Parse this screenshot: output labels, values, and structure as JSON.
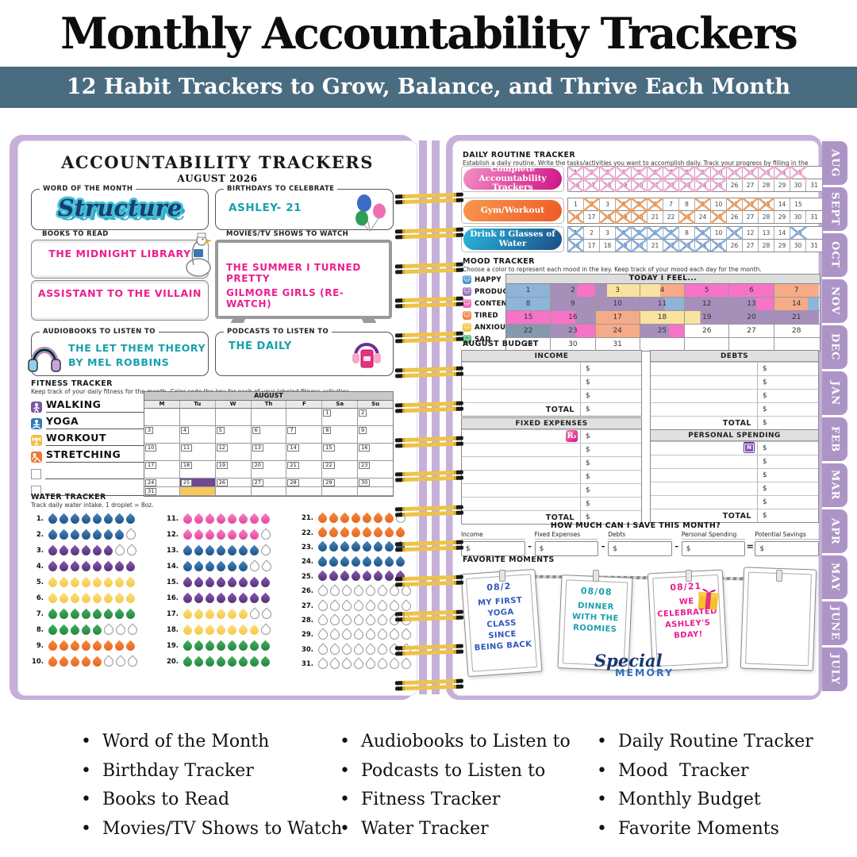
{
  "header": {
    "title": "Monthly Accountability Trackers",
    "banner": "12 Habit Trackers to Grow, Balance, and Thrive Each Month",
    "banner_color": "#4a6c80"
  },
  "left_page": {
    "title": "ACCOUNTABILITY TRACKERS",
    "subtitle": "AUGUST 2026",
    "word_of_month": {
      "label": "WORD OF THE MONTH",
      "value": "Structure"
    },
    "birthdays": {
      "label": "BIRTHDAYS TO CELEBRATE",
      "value": "ASHLEY- 21"
    },
    "books": {
      "label": "BOOKS TO READ",
      "entries": [
        "THE MIDNIGHT LIBRARY",
        "ASSISTANT TO THE VILLAIN"
      ]
    },
    "movies": {
      "label": "MOVIES/TV SHOWS TO WATCH",
      "entries": [
        "THE SUMMER I TURNED PRETTY",
        "GILMORE GIRLS (RE-WATCH)"
      ]
    },
    "audiobooks": {
      "label": "AUDIOBOOKS TO LISTEN TO",
      "entries": [
        "THE LET THEM THEORY",
        "BY MEL ROBBINS"
      ]
    },
    "podcasts": {
      "label": "PODCASTS TO LISTEN TO",
      "entries": [
        "THE DAILY"
      ]
    },
    "fitness": {
      "title": "FITNESS TRACKER",
      "subtitle": "Keep track of your daily fitness for the month. Color code the key for each of your labeled fitness activities.",
      "key": [
        {
          "label": "WALKING",
          "color": "#7a58a5",
          "icon": "walking-icon"
        },
        {
          "label": "YOGA",
          "color": "#2f7bb8",
          "icon": "yoga-icon"
        },
        {
          "label": "WORKOUT",
          "color": "#f6bc3f",
          "icon": "workout-icon"
        },
        {
          "label": "STRETCHING",
          "color": "#f0782f",
          "icon": "stretching-icon"
        },
        {
          "label": "",
          "color": ""
        },
        {
          "label": "",
          "color": ""
        }
      ],
      "calendar": {
        "month": "AUGUST",
        "day_headers": [
          "M",
          "Tu",
          "W",
          "Th",
          "F",
          "Sa",
          "Su"
        ],
        "colors": {
          "orange": "#f0793a",
          "purple": "#6e4b8e",
          "yellow": "#f9c85a",
          "blue": "#2e5f8d"
        },
        "weeks": [
          {
            "h": "tall",
            "cells": [
              {},
              {},
              {},
              {},
              {},
              {
                "day": 1
              },
              {
                "day": 2,
                "top": "blue",
                "bottom": "blue"
              }
            ]
          },
          {
            "h": "tall",
            "cells": [
              {
                "day": 3,
                "top": "orange",
                "bottom": "purple"
              },
              {
                "day": 4,
                "top": "purple",
                "bottom": "yellow"
              },
              {
                "day": 5,
                "top": "blue",
                "bottom": "blue"
              },
              {
                "day": 6,
                "top": "purple",
                "bottom": "yellow"
              },
              {
                "day": 7
              },
              {
                "day": 8
              },
              {
                "day": 9,
                "top": "blue",
                "bottom": "blue"
              }
            ]
          },
          {
            "h": "tall",
            "cells": [
              {
                "day": 10,
                "top": "orange",
                "bottom": "purple"
              },
              {
                "day": 11,
                "top": "purple",
                "bottom": "yellow"
              },
              {
                "day": 12,
                "top": "blue",
                "bottom": "blue"
              },
              {
                "day": 13,
                "top": "purple",
                "bottom": "yellow"
              },
              {
                "day": 14
              },
              {
                "day": 15
              },
              {
                "day": 16,
                "top": "blue",
                "bottom": "blue"
              }
            ]
          },
          {
            "h": "tall",
            "cells": [
              {
                "day": 17,
                "top": "orange",
                "bottom": "purple"
              },
              {
                "day": 18,
                "top": "purple",
                "bottom": "yellow"
              },
              {
                "day": 19,
                "top": "blue",
                "bottom": "blue"
              },
              {
                "day": 20,
                "top": "purple",
                "bottom": "yellow"
              },
              {
                "day": 21
              },
              {
                "day": 22
              },
              {
                "day": 23,
                "top": "blue",
                "bottom": "blue"
              }
            ]
          },
          {
            "h": "short",
            "cells": [
              {
                "day": 24
              },
              {
                "day": 25,
                "top": "purple"
              },
              {
                "day": 26
              },
              {
                "day": 27
              },
              {
                "day": 28
              },
              {
                "day": 29
              },
              {
                "day": 30
              }
            ]
          },
          {
            "h": "short",
            "cells": [
              {
                "day": 31
              },
              {
                "top": "yellow"
              },
              {},
              {},
              {},
              {},
              {}
            ]
          }
        ]
      }
    },
    "water": {
      "title": "WATER TRACKER",
      "subtitle": "Track daily water intake. 1 droplet = 8oz.",
      "slots_per_day": 8,
      "colors": {
        "blue": [
          "#4887c0",
          "#16497a"
        ],
        "purple": [
          "#8a5bb0",
          "#4b2a70"
        ],
        "yellow": [
          "#fde083",
          "#f3c53d"
        ],
        "green": [
          "#46b05c",
          "#1d7e3c"
        ],
        "orange": [
          "#f68c3c",
          "#e55f1f"
        ],
        "pink": [
          "#f584c6",
          "#e23a98"
        ]
      },
      "columns": [
        [
          {
            "d": 1,
            "c": "blue",
            "f": 8
          },
          {
            "d": 2,
            "c": "blue",
            "f": 7
          },
          {
            "d": 3,
            "c": "purple",
            "f": 6
          },
          {
            "d": 4,
            "c": "purple",
            "f": 8
          },
          {
            "d": 5,
            "c": "yellow",
            "f": 8
          },
          {
            "d": 6,
            "c": "yellow",
            "f": 8
          },
          {
            "d": 7,
            "c": "green",
            "f": 8
          },
          {
            "d": 8,
            "c": "green",
            "f": 5
          },
          {
            "d": 9,
            "c": "orange",
            "f": 8
          },
          {
            "d": 10,
            "c": "orange",
            "f": 5
          }
        ],
        [
          {
            "d": 11,
            "c": "pink",
            "f": 8
          },
          {
            "d": 12,
            "c": "pink",
            "f": 7
          },
          {
            "d": 13,
            "c": "blue",
            "f": 7
          },
          {
            "d": 14,
            "c": "blue",
            "f": 6
          },
          {
            "d": 15,
            "c": "purple",
            "f": 8
          },
          {
            "d": 16,
            "c": "purple",
            "f": 8
          },
          {
            "d": 17,
            "c": "yellow",
            "f": 6
          },
          {
            "d": 18,
            "c": "yellow",
            "f": 7
          },
          {
            "d": 19,
            "c": "green",
            "f": 8
          },
          {
            "d": 20,
            "c": "green",
            "f": 8
          }
        ],
        [
          {
            "d": 21,
            "c": "orange",
            "f": 7
          },
          {
            "d": 22,
            "c": "orange",
            "f": 8
          },
          {
            "d": 23,
            "c": "blue",
            "f": 8
          },
          {
            "d": 24,
            "c": "blue",
            "f": 8
          },
          {
            "d": 25,
            "c": "purple",
            "f": 8
          },
          {
            "d": 26,
            "c": "",
            "f": 0
          },
          {
            "d": 27,
            "c": "",
            "f": 0
          },
          {
            "d": 28,
            "c": "",
            "f": 0
          },
          {
            "d": 29,
            "c": "",
            "f": 0
          },
          {
            "d": 30,
            "c": "",
            "f": 0
          },
          {
            "d": 31,
            "c": "",
            "f": 0
          }
        ]
      ]
    }
  },
  "right_page": {
    "routine": {
      "title": "DAILY ROUTINE TRACKER",
      "subtitle": "Establish a daily routine. Write the tasks/activities you want to accomplish daily. Track your progress by filling in the days you complete them.",
      "tasks": [
        {
          "label": "Complete Accountability Trackers",
          "pill": [
            "#f291c5",
            "#cf1286"
          ],
          "x_color": "#f2a0d2",
          "crossed": [
            1,
            2,
            3,
            4,
            5,
            6,
            7,
            8,
            9,
            10,
            11,
            12,
            13,
            14,
            15,
            16,
            17,
            18,
            19,
            20,
            21,
            22,
            23,
            24,
            25
          ]
        },
        {
          "label": "Gym/Workout",
          "pill": [
            "#f7974f",
            "#ee5a24"
          ],
          "x_color": "#f0954c",
          "crossed": [
            2,
            4,
            5,
            6,
            9,
            11,
            12,
            13,
            16,
            18,
            19,
            20,
            23,
            25
          ]
        },
        {
          "label": "Drink 8 Glasses of Water",
          "pill": [
            "#2ab5dc",
            "#1b4e86"
          ],
          "x_color": "#76a3da",
          "crossed": [
            1,
            4,
            5,
            6,
            7,
            9,
            11,
            15,
            16,
            19,
            20,
            22,
            23,
            24,
            25
          ]
        }
      ]
    },
    "mood": {
      "title": "MOOD TRACKER",
      "subtitle": "Choose a color to represent each mood in the key. Keep track of your mood each day for the month.",
      "feel_header": "TODAY I FEEL...",
      "key": [
        {
          "label": "HAPPY",
          "color": "#4f97d6"
        },
        {
          "label": "PRODUCTIVE",
          "color": "#9a70c0"
        },
        {
          "label": "CONTENT",
          "color": "#f268b4"
        },
        {
          "label": "TIRED",
          "color": "#f08548"
        },
        {
          "label": "ANXIOUS",
          "color": "#f3c33f"
        },
        {
          "label": "SAD",
          "color": "#3fae62"
        }
      ],
      "cell_colors": {
        "B": "#8fb4d9",
        "P": "#a78fbb",
        "K": "#f773c8",
        "Y": "#fae3a0",
        "O": "#f6ab88",
        "S": "#8598ad",
        "W": "#ffffff"
      },
      "cells": [
        {
          "d": 1,
          "s": [
            [
              "B",
              100
            ]
          ]
        },
        {
          "d": 2,
          "s": [
            [
              "P",
              60
            ],
            [
              "K",
              40
            ]
          ]
        },
        {
          "d": 3,
          "s": [
            [
              "P",
              25
            ],
            [
              "Y",
              75
            ]
          ]
        },
        {
          "d": 4,
          "s": [
            [
              "Y",
              45
            ],
            [
              "O",
              55
            ]
          ]
        },
        {
          "d": 5,
          "s": [
            [
              "K",
              100
            ]
          ]
        },
        {
          "d": 6,
          "s": [
            [
              "K",
              100
            ]
          ]
        },
        {
          "d": 7,
          "s": [
            [
              "O",
              100
            ]
          ]
        },
        {
          "d": 8,
          "s": [
            [
              "B",
              100
            ]
          ]
        },
        {
          "d": 9,
          "s": [
            [
              "P",
              100
            ]
          ]
        },
        {
          "d": 10,
          "s": [
            [
              "P",
              100
            ]
          ]
        },
        {
          "d": 11,
          "s": [
            [
              "P",
              55
            ],
            [
              "B",
              45
            ]
          ]
        },
        {
          "d": 12,
          "s": [
            [
              "P",
              100
            ]
          ]
        },
        {
          "d": 13,
          "s": [
            [
              "P",
              60
            ],
            [
              "K",
              40
            ]
          ]
        },
        {
          "d": 14,
          "s": [
            [
              "O",
              75
            ],
            [
              "B",
              25
            ]
          ]
        },
        {
          "d": 15,
          "s": [
            [
              "K",
              100
            ]
          ]
        },
        {
          "d": 16,
          "s": [
            [
              "K",
              55
            ],
            [
              "P",
              45
            ]
          ]
        },
        {
          "d": 17,
          "s": [
            [
              "O",
              100
            ]
          ]
        },
        {
          "d": 18,
          "s": [
            [
              "Y",
              100
            ]
          ]
        },
        {
          "d": 19,
          "s": [
            [
              "Y",
              35
            ],
            [
              "P",
              65
            ]
          ]
        },
        {
          "d": 20,
          "s": [
            [
              "P",
              100
            ]
          ]
        },
        {
          "d": 21,
          "s": [
            [
              "P",
              100
            ]
          ]
        },
        {
          "d": 22,
          "s": [
            [
              "S",
              100
            ]
          ]
        },
        {
          "d": 23,
          "s": [
            [
              "P",
              55
            ],
            [
              "K",
              45
            ]
          ]
        },
        {
          "d": 24,
          "s": [
            [
              "O",
              100
            ]
          ]
        },
        {
          "d": 25,
          "s": [
            [
              "P",
              65
            ],
            [
              "K",
              35
            ]
          ]
        },
        {
          "d": 26,
          "s": [
            [
              "W",
              100
            ]
          ]
        },
        {
          "d": 27,
          "s": [
            [
              "W",
              100
            ]
          ]
        },
        {
          "d": 28,
          "s": [
            [
              "W",
              100
            ]
          ]
        },
        {
          "d": 29,
          "s": [
            [
              "W",
              100
            ]
          ]
        },
        {
          "d": 30,
          "s": [
            [
              "W",
              100
            ]
          ]
        },
        {
          "d": 31,
          "s": [
            [
              "W",
              100
            ]
          ]
        }
      ]
    },
    "budget": {
      "title": "AUGUST BUDGET",
      "dollar": "$",
      "total_label": "TOTAL",
      "tables": {
        "income": {
          "header": "INCOME",
          "rows": 3,
          "icon": ""
        },
        "debts": {
          "header": "DEBTS",
          "rows": 4,
          "icon": ""
        },
        "fixed": {
          "header": "FIXED EXPENSES",
          "rows": 6,
          "icon": "rx"
        },
        "personal": {
          "header": "PERSONAL SPENDING",
          "rows": 5,
          "icon": "monitor"
        }
      }
    },
    "save": {
      "title": "HOW MUCH CAN I SAVE THIS MONTH?",
      "fields": [
        "Income",
        "Fixed Expenses",
        "Debts",
        "Personal Spending",
        "Potential Savings"
      ],
      "operators": [
        "-",
        "-",
        "-",
        "="
      ],
      "dollar": "$"
    },
    "moments": {
      "title": "FAVORITE MOMENTS",
      "polaroids": [
        {
          "date": "08/2",
          "text": "MY FIRST YOGA CLASS SINCE BEING BACK",
          "ink": "#2e57bd",
          "tilt": -4,
          "gift": false
        },
        {
          "date": "08/08",
          "text": "DINNER WITH THE ROOMIES",
          "ink": "#18a0ad",
          "tilt": 2.5,
          "gift": false
        },
        {
          "date": "08/21",
          "text": "WE CELEBRATED ASHLEY'S BDAY!",
          "ink": "#ea1c8e",
          "tilt": -3,
          "gift": true
        },
        {
          "date": "",
          "text": "",
          "ink": "#333333",
          "tilt": 2,
          "gift": false
        }
      ],
      "watermark_script": "Special",
      "watermark_caps": "MEMORY"
    }
  },
  "tabs": [
    "AUG",
    "SEPT",
    "OCT",
    "NOV",
    "DEC",
    "JAN",
    "FEB",
    "MAR",
    "APR",
    "MAY",
    "JUNE",
    "JULY"
  ],
  "features": [
    [
      "Word of the Month",
      "Birthday Tracker",
      "Books to Read",
      "Movies/TV Shows to Watch"
    ],
    [
      "Audiobooks to Listen to",
      "Podcasts to Listen to",
      "Fitness Tracker",
      "Water Tracker"
    ],
    [
      "Daily Routine Tracker",
      "Mood  Tracker",
      "Monthly Budget",
      "Favorite Moments"
    ]
  ]
}
